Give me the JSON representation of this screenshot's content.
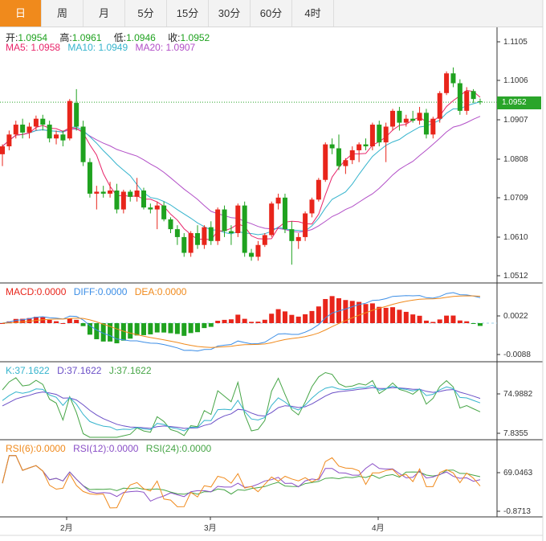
{
  "tabs": [
    "日",
    "周",
    "月",
    "5分",
    "15分",
    "30分",
    "60分",
    "4时"
  ],
  "active_tab": 0,
  "quote": {
    "open_label": "开:",
    "open": "1.0954",
    "high_label": "高:",
    "high": "1.0961",
    "low_label": "低:",
    "low": "1.0946",
    "close_label": "收:",
    "close": "1.0952"
  },
  "ma_legend": {
    "ma5_label": "MA5:",
    "ma5": "1.0958",
    "ma10_label": "MA10:",
    "ma10": "1.0949",
    "ma20_label": "MA20:",
    "ma20": "1.0907"
  },
  "macd_legend": {
    "macd_label": "MACD:",
    "macd": "0.0000",
    "diff_label": "DIFF:",
    "diff": "0.0000",
    "dea_label": "DEA:",
    "dea": "0.0000"
  },
  "kdj_legend": {
    "k_label": "K:",
    "k": "37.1622",
    "d_label": "D:",
    "d": "37.1622",
    "j_label": "J:",
    "j": "37.1622"
  },
  "rsi_legend": {
    "rsi6_label": "RSI(6):",
    "rsi6": "0.0000",
    "rsi12_label": "RSI(12):",
    "rsi12": "0.0000",
    "rsi24_label": "RSI(24):",
    "rsi24": "0.0000"
  },
  "price_axis": {
    "ticks": [
      "1.1105",
      "1.1006",
      "1.0907",
      "1.0808",
      "1.0709",
      "1.0610",
      "1.0512"
    ],
    "current_price": "1.0952"
  },
  "macd_axis": {
    "ticks": [
      "0.0022",
      "-0.0088"
    ]
  },
  "kdj_axis": {
    "ticks": [
      "74.9882",
      "7.8355"
    ]
  },
  "rsi_axis": {
    "ticks": [
      "69.0463",
      "-0.8713"
    ]
  },
  "x_axis": {
    "months": [
      "2月",
      "3月",
      "4月"
    ]
  },
  "colors": {
    "up": "#e8251b",
    "down": "#1fa21f",
    "ma5": "#e8256a",
    "ma10": "#35b4cd",
    "ma20": "#b24fc7",
    "diff": "#3c8ee6",
    "dea": "#f08a1c",
    "k": "#35b4cd",
    "d": "#6b4fc7",
    "j": "#46a546",
    "rsi6": "#f08a1c",
    "rsi12": "#8a4fc7",
    "rsi24": "#46a546",
    "tab_active": "#f08a1c"
  },
  "chart_data": {
    "type": "candlestick",
    "ylim": [
      1.0512,
      1.1105
    ],
    "candles": [
      {
        "o": 1.082,
        "h": 1.0845,
        "l": 1.079,
        "c": 1.084
      },
      {
        "o": 1.084,
        "h": 1.088,
        "l": 1.083,
        "c": 1.087
      },
      {
        "o": 1.087,
        "h": 1.0905,
        "l": 1.086,
        "c": 1.0895
      },
      {
        "o": 1.0895,
        "h": 1.091,
        "l": 1.086,
        "c": 1.0875
      },
      {
        "o": 1.0875,
        "h": 1.09,
        "l": 1.086,
        "c": 1.089
      },
      {
        "o": 1.089,
        "h": 1.0918,
        "l": 1.088,
        "c": 1.091
      },
      {
        "o": 1.091,
        "h": 1.092,
        "l": 1.088,
        "c": 1.0895
      },
      {
        "o": 1.0895,
        "h": 1.0905,
        "l": 1.085,
        "c": 1.086
      },
      {
        "o": 1.086,
        "h": 1.088,
        "l": 1.0845,
        "c": 1.087
      },
      {
        "o": 1.087,
        "h": 1.088,
        "l": 1.084,
        "c": 1.0855
      },
      {
        "o": 1.086,
        "h": 1.096,
        "l": 1.0855,
        "c": 1.0955
      },
      {
        "o": 1.095,
        "h": 1.0985,
        "l": 1.088,
        "c": 1.089
      },
      {
        "o": 1.089,
        "h": 1.0905,
        "l": 1.079,
        "c": 1.08
      },
      {
        "o": 1.08,
        "h": 1.081,
        "l": 1.071,
        "c": 1.072
      },
      {
        "o": 1.072,
        "h": 1.074,
        "l": 1.068,
        "c": 1.0725
      },
      {
        "o": 1.0725,
        "h": 1.074,
        "l": 1.071,
        "c": 1.072
      },
      {
        "o": 1.072,
        "h": 1.075,
        "l": 1.071,
        "c": 1.0728
      },
      {
        "o": 1.0728,
        "h": 1.0745,
        "l": 1.067,
        "c": 1.068
      },
      {
        "o": 1.068,
        "h": 1.073,
        "l": 1.067,
        "c": 1.0725
      },
      {
        "o": 1.0725,
        "h": 1.073,
        "l": 1.07,
        "c": 1.0712
      },
      {
        "o": 1.0712,
        "h": 1.076,
        "l": 1.07,
        "c": 1.0728
      },
      {
        "o": 1.0728,
        "h": 1.0735,
        "l": 1.068,
        "c": 1.0685
      },
      {
        "o": 1.0685,
        "h": 1.0695,
        "l": 1.067,
        "c": 1.068
      },
      {
        "o": 1.068,
        "h": 1.07,
        "l": 1.063,
        "c": 1.069
      },
      {
        "o": 1.069,
        "h": 1.07,
        "l": 1.065,
        "c": 1.0655
      },
      {
        "o": 1.0655,
        "h": 1.066,
        "l": 1.062,
        "c": 1.063
      },
      {
        "o": 1.063,
        "h": 1.064,
        "l": 1.059,
        "c": 1.061
      },
      {
        "o": 1.061,
        "h": 1.062,
        "l": 1.056,
        "c": 1.057
      },
      {
        "o": 1.057,
        "h": 1.0625,
        "l": 1.056,
        "c": 1.062
      },
      {
        "o": 1.062,
        "h": 1.064,
        "l": 1.058,
        "c": 1.059
      },
      {
        "o": 1.059,
        "h": 1.064,
        "l": 1.058,
        "c": 1.0635
      },
      {
        "o": 1.0635,
        "h": 1.065,
        "l": 1.059,
        "c": 1.06
      },
      {
        "o": 1.06,
        "h": 1.0685,
        "l": 1.059,
        "c": 1.068
      },
      {
        "o": 1.068,
        "h": 1.069,
        "l": 1.061,
        "c": 1.0625
      },
      {
        "o": 1.0625,
        "h": 1.064,
        "l": 1.059,
        "c": 1.062
      },
      {
        "o": 1.062,
        "h": 1.0695,
        "l": 1.061,
        "c": 1.069
      },
      {
        "o": 1.069,
        "h": 1.07,
        "l": 1.056,
        "c": 1.057
      },
      {
        "o": 1.057,
        "h": 1.058,
        "l": 1.055,
        "c": 1.056
      },
      {
        "o": 1.056,
        "h": 1.06,
        "l": 1.055,
        "c": 1.059
      },
      {
        "o": 1.059,
        "h": 1.062,
        "l": 1.0585,
        "c": 1.0615
      },
      {
        "o": 1.0615,
        "h": 1.07,
        "l": 1.061,
        "c": 1.0695
      },
      {
        "o": 1.0695,
        "h": 1.072,
        "l": 1.068,
        "c": 1.071
      },
      {
        "o": 1.071,
        "h": 1.072,
        "l": 1.062,
        "c": 1.063
      },
      {
        "o": 1.063,
        "h": 1.065,
        "l": 1.054,
        "c": 1.06
      },
      {
        "o": 1.06,
        "h": 1.062,
        "l": 1.058,
        "c": 1.061
      },
      {
        "o": 1.061,
        "h": 1.0675,
        "l": 1.06,
        "c": 1.067
      },
      {
        "o": 1.067,
        "h": 1.071,
        "l": 1.066,
        "c": 1.0705
      },
      {
        "o": 1.0705,
        "h": 1.076,
        "l": 1.07,
        "c": 1.0755
      },
      {
        "o": 1.0755,
        "h": 1.085,
        "l": 1.075,
        "c": 1.0845
      },
      {
        "o": 1.0845,
        "h": 1.086,
        "l": 1.082,
        "c": 1.0835
      },
      {
        "o": 1.0835,
        "h": 1.087,
        "l": 1.078,
        "c": 1.079
      },
      {
        "o": 1.079,
        "h": 1.081,
        "l": 1.077,
        "c": 1.0805
      },
      {
        "o": 1.0805,
        "h": 1.084,
        "l": 1.0795,
        "c": 1.083
      },
      {
        "o": 1.083,
        "h": 1.085,
        "l": 1.08,
        "c": 1.0845
      },
      {
        "o": 1.0845,
        "h": 1.086,
        "l": 1.083,
        "c": 1.084
      },
      {
        "o": 1.084,
        "h": 1.09,
        "l": 1.083,
        "c": 1.0895
      },
      {
        "o": 1.0895,
        "h": 1.0905,
        "l": 1.084,
        "c": 1.085
      },
      {
        "o": 1.085,
        "h": 1.09,
        "l": 1.08,
        "c": 1.089
      },
      {
        "o": 1.089,
        "h": 1.0935,
        "l": 1.088,
        "c": 1.093
      },
      {
        "o": 1.093,
        "h": 1.094,
        "l": 1.088,
        "c": 1.09
      },
      {
        "o": 1.09,
        "h": 1.092,
        "l": 1.089,
        "c": 1.091
      },
      {
        "o": 1.091,
        "h": 1.093,
        "l": 1.09,
        "c": 1.0905
      },
      {
        "o": 1.0905,
        "h": 1.094,
        "l": 1.0895,
        "c": 1.0925
      },
      {
        "o": 1.0925,
        "h": 1.0935,
        "l": 1.086,
        "c": 1.087
      },
      {
        "o": 1.087,
        "h": 1.0915,
        "l": 1.086,
        "c": 1.091
      },
      {
        "o": 1.091,
        "h": 1.098,
        "l": 1.09,
        "c": 1.0975
      },
      {
        "o": 1.0975,
        "h": 1.103,
        "l": 1.097,
        "c": 1.1025
      },
      {
        "o": 1.1025,
        "h": 1.104,
        "l": 1.099,
        "c": 1.1
      },
      {
        "o": 1.1,
        "h": 1.101,
        "l": 1.092,
        "c": 1.093
      },
      {
        "o": 1.093,
        "h": 1.099,
        "l": 1.092,
        "c": 1.098
      },
      {
        "o": 1.098,
        "h": 1.0985,
        "l": 1.095,
        "c": 1.096
      },
      {
        "o": 1.0954,
        "h": 1.0961,
        "l": 1.0946,
        "c": 1.0952
      }
    ]
  }
}
